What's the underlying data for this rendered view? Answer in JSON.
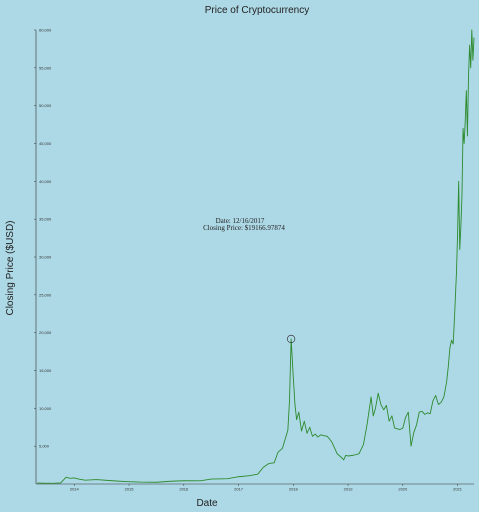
{
  "chart_data": {
    "type": "line",
    "title": "Price of Cryptocurrency",
    "xlabel": "Date",
    "ylabel": "Closing Price ($USD)",
    "xlim": [
      2013.3,
      2021.3
    ],
    "ylim": [
      0,
      60000
    ],
    "x_ticks": [
      {
        "value": 2014,
        "label": "2014"
      },
      {
        "value": 2015,
        "label": "2015"
      },
      {
        "value": 2016,
        "label": "2016"
      },
      {
        "value": 2017,
        "label": "2017"
      },
      {
        "value": 2018,
        "label": "2018"
      },
      {
        "value": 2019,
        "label": "2019"
      },
      {
        "value": 2020,
        "label": "2020"
      },
      {
        "value": 2021,
        "label": "2021"
      }
    ],
    "y_ticks": [
      {
        "value": 5000,
        "label": "5,000"
      },
      {
        "value": 10000,
        "label": "10,000"
      },
      {
        "value": 15000,
        "label": "15,000"
      },
      {
        "value": 20000,
        "label": "20,000"
      },
      {
        "value": 25000,
        "label": "25,000"
      },
      {
        "value": 30000,
        "label": "30,000"
      },
      {
        "value": 35000,
        "label": "35,000"
      },
      {
        "value": 40000,
        "label": "40,000"
      },
      {
        "value": 45000,
        "label": "45,000"
      },
      {
        "value": 50000,
        "label": "50,000"
      },
      {
        "value": 55000,
        "label": "55,000"
      },
      {
        "value": 60000,
        "label": "60,000"
      }
    ],
    "grid": false,
    "line_color": "#2e8b2e",
    "series": [
      {
        "x": [
          2013.32,
          2013.45,
          2013.6,
          2013.75,
          2013.85,
          2013.92,
          2014.0,
          2014.1,
          2014.2,
          2014.4,
          2014.6,
          2014.8,
          2015.0,
          2015.2,
          2015.5,
          2015.8,
          2016.0,
          2016.3,
          2016.5,
          2016.8,
          2017.0,
          2017.2,
          2017.35,
          2017.45,
          2017.55,
          2017.65,
          2017.72,
          2017.8,
          2017.85,
          2017.9,
          2017.93,
          2017.96,
          2018.0,
          2018.03,
          2018.06,
          2018.1,
          2018.15,
          2018.2,
          2018.25,
          2018.3,
          2018.35,
          2018.4,
          2018.45,
          2018.5,
          2018.55,
          2018.62,
          2018.7,
          2018.8,
          2018.88,
          2018.92,
          2018.96,
          2019.0,
          2019.1,
          2019.2,
          2019.28,
          2019.35,
          2019.42,
          2019.46,
          2019.5,
          2019.55,
          2019.6,
          2019.65,
          2019.7,
          2019.75,
          2019.8,
          2019.85,
          2019.9,
          2019.95,
          2020.0,
          2020.05,
          2020.1,
          2020.15,
          2020.2,
          2020.25,
          2020.3,
          2020.35,
          2020.4,
          2020.45,
          2020.5,
          2020.55,
          2020.6,
          2020.65,
          2020.7,
          2020.75,
          2020.8,
          2020.83,
          2020.86,
          2020.89,
          2020.92,
          2020.95,
          2020.98,
          2021.0,
          2021.02,
          2021.04,
          2021.06,
          2021.08,
          2021.1,
          2021.12,
          2021.14,
          2021.16,
          2021.18,
          2021.2,
          2021.22,
          2021.24,
          2021.26,
          2021.28,
          2021.3
        ],
        "y": [
          130,
          110,
          95,
          140,
          900,
          750,
          800,
          620,
          500,
          580,
          480,
          380,
          300,
          250,
          230,
          380,
          430,
          420,
          650,
          700,
          960,
          1100,
          1300,
          2200,
          2700,
          2800,
          4200,
          4700,
          5900,
          7100,
          11000,
          19166.98,
          14000,
          10500,
          8500,
          9500,
          7000,
          8300,
          6700,
          7500,
          6300,
          6600,
          6200,
          6500,
          6400,
          6300,
          5600,
          4000,
          3500,
          3200,
          3800,
          3700,
          3800,
          4000,
          5200,
          8000,
          11500,
          9000,
          10000,
          12000,
          10500,
          9800,
          10400,
          8300,
          9000,
          7400,
          7300,
          7200,
          7400,
          8800,
          9500,
          5000,
          6800,
          7800,
          9500,
          9600,
          9200,
          9400,
          9300,
          11000,
          11700,
          10500,
          10800,
          11500,
          13500,
          15500,
          18000,
          19000,
          18500,
          23000,
          28000,
          33000,
          40000,
          31000,
          34000,
          38000,
          47000,
          45000,
          48000,
          52000,
          46000,
          54000,
          58000,
          55000,
          60000,
          56000,
          59000
        ]
      }
    ],
    "highlight": {
      "x": 2017.96,
      "y": 19166.98,
      "date_text": "Date: 12/16/2017",
      "price_text": "Closing Price: $19166.97874"
    }
  }
}
